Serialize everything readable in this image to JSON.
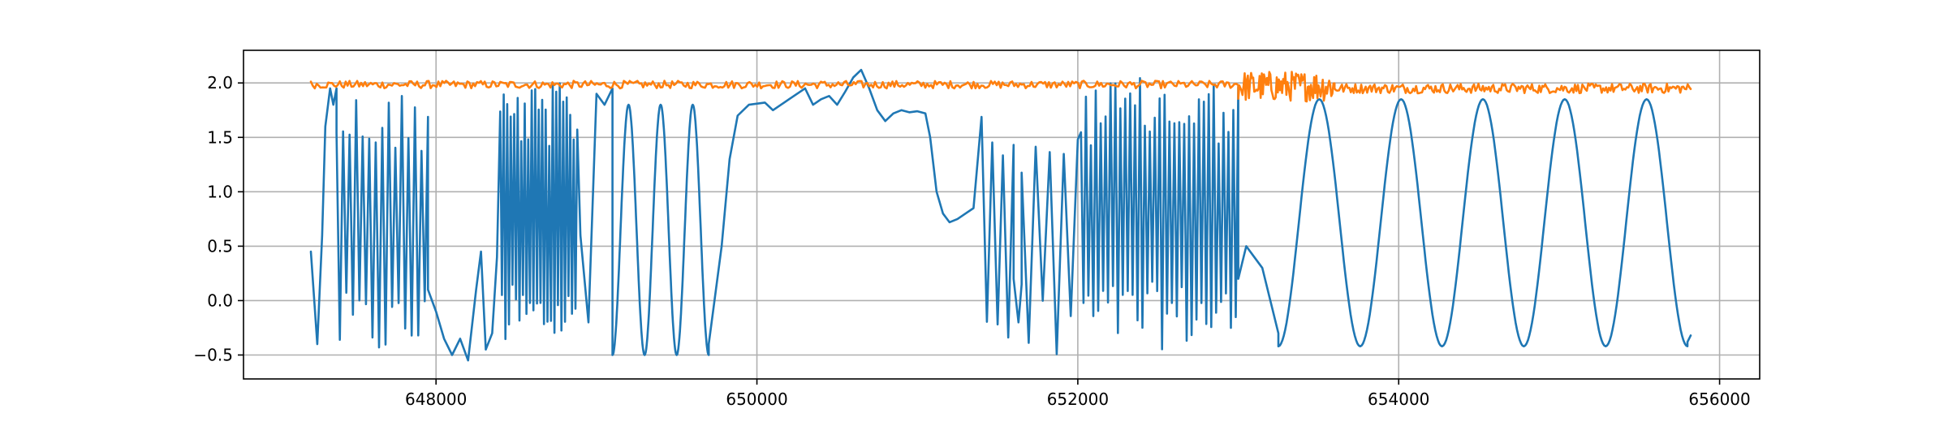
{
  "chart_data": {
    "type": "line",
    "title": "",
    "xlabel": "",
    "ylabel": "",
    "xlim": [
      646800,
      656250
    ],
    "ylim": [
      -0.72,
      2.3
    ],
    "grid": true,
    "legend": "none",
    "x_ticks": [
      648000,
      650000,
      652000,
      654000,
      656000
    ],
    "x_tick_labels": [
      "648000",
      "650000",
      "652000",
      "654000",
      "656000"
    ],
    "y_ticks": [
      -0.5,
      0.0,
      0.5,
      1.0,
      1.5,
      2.0
    ],
    "y_tick_labels": [
      "−0.5",
      "0.0",
      "0.5",
      "1.0",
      "1.5",
      "2.0"
    ],
    "series": [
      {
        "color": "#1f77b4",
        "segments": [
          {
            "kind": "path",
            "points": [
              [
                647220,
                0.45
              ],
              [
                647260,
                -0.4
              ],
              [
                647290,
                0.6
              ],
              [
                647310,
                1.6
              ],
              [
                647340,
                1.95
              ],
              [
                647360,
                1.8
              ],
              [
                647380,
                1.95
              ]
            ]
          },
          {
            "kind": "osc",
            "x0": 647380,
            "x1": 647950,
            "lo": -0.55,
            "hi": 1.95,
            "n": 28
          },
          {
            "kind": "path",
            "points": [
              [
                647950,
                0.1
              ],
              [
                648000,
                -0.1
              ],
              [
                648050,
                -0.35
              ],
              [
                648100,
                -0.5
              ],
              [
                648150,
                -0.35
              ],
              [
                648200,
                -0.55
              ],
              [
                648250,
                0.1
              ],
              [
                648280,
                0.45
              ],
              [
                648310,
                -0.45
              ],
              [
                648350,
                -0.3
              ],
              [
                648380,
                0.4
              ]
            ]
          },
          {
            "kind": "osc",
            "x0": 648400,
            "x1": 648880,
            "lo": -0.45,
            "hi": 2.0,
            "n": 44
          },
          {
            "kind": "path",
            "points": [
              [
                648900,
                0.6
              ],
              [
                648950,
                -0.2
              ],
              [
                649000,
                1.9
              ],
              [
                649050,
                1.8
              ],
              [
                649100,
                1.95
              ]
            ]
          },
          {
            "kind": "wave",
            "x0": 649100,
            "x1": 649700,
            "lo": -0.5,
            "hi": 1.8,
            "n": 3
          },
          {
            "kind": "path",
            "points": [
              [
                649700,
                -0.4
              ],
              [
                649780,
                0.5
              ],
              [
                649830,
                1.3
              ],
              [
                649880,
                1.7
              ],
              [
                649950,
                1.8
              ],
              [
                650050,
                1.82
              ],
              [
                650100,
                1.75
              ],
              [
                650150,
                1.8
              ],
              [
                650200,
                1.85
              ],
              [
                650300,
                1.95
              ],
              [
                650350,
                1.8
              ],
              [
                650400,
                1.85
              ],
              [
                650450,
                1.88
              ],
              [
                650500,
                1.8
              ],
              [
                650550,
                1.92
              ],
              [
                650600,
                2.05
              ],
              [
                650650,
                2.12
              ],
              [
                650700,
                1.95
              ],
              [
                650750,
                1.75
              ],
              [
                650800,
                1.65
              ],
              [
                650850,
                1.72
              ],
              [
                650900,
                1.75
              ],
              [
                650950,
                1.73
              ],
              [
                651000,
                1.74
              ],
              [
                651050,
                1.72
              ],
              [
                651080,
                1.5
              ],
              [
                651120,
                1.0
              ],
              [
                651160,
                0.8
              ],
              [
                651200,
                0.72
              ],
              [
                651250,
                0.75
              ],
              [
                651300,
                0.8
              ],
              [
                651350,
                0.85
              ]
            ]
          },
          {
            "kind": "osc",
            "x0": 651400,
            "x1": 651600,
            "lo": -0.5,
            "hi": 1.7,
            "n": 6
          },
          {
            "kind": "path",
            "points": [
              [
                651600,
                0.2
              ],
              [
                651630,
                -0.2
              ],
              [
                651650,
                0.15
              ]
            ]
          },
          {
            "kind": "osc",
            "x0": 651650,
            "x1": 652000,
            "lo": -0.5,
            "hi": 1.7,
            "n": 8
          },
          {
            "kind": "osc",
            "x0": 652020,
            "x1": 653000,
            "lo": -0.45,
            "hi": 2.05,
            "n": 64
          },
          {
            "kind": "path",
            "points": [
              [
                653000,
                0.2
              ],
              [
                653050,
                0.5
              ],
              [
                653100,
                0.4
              ],
              [
                653150,
                0.3
              ],
              [
                653200,
                0.0
              ],
              [
                653250,
                -0.3
              ]
            ]
          },
          {
            "kind": "wave",
            "x0": 653250,
            "x1": 655800,
            "lo": -0.42,
            "hi": 1.85,
            "n": 5
          },
          {
            "kind": "path",
            "points": [
              [
                655800,
                -0.38
              ],
              [
                655820,
                -0.32
              ]
            ]
          }
        ]
      },
      {
        "color": "#ff7f0e",
        "segments": [
          {
            "kind": "noise",
            "x0": 647220,
            "x1": 653000,
            "center": 1.985,
            "amp": 0.035,
            "n": 480
          },
          {
            "kind": "noise",
            "x0": 653000,
            "x1": 653600,
            "center": 1.97,
            "amp": 0.14,
            "n": 90
          },
          {
            "kind": "noise",
            "x0": 653600,
            "x1": 655820,
            "center": 1.95,
            "amp": 0.045,
            "n": 240
          }
        ]
      }
    ]
  }
}
